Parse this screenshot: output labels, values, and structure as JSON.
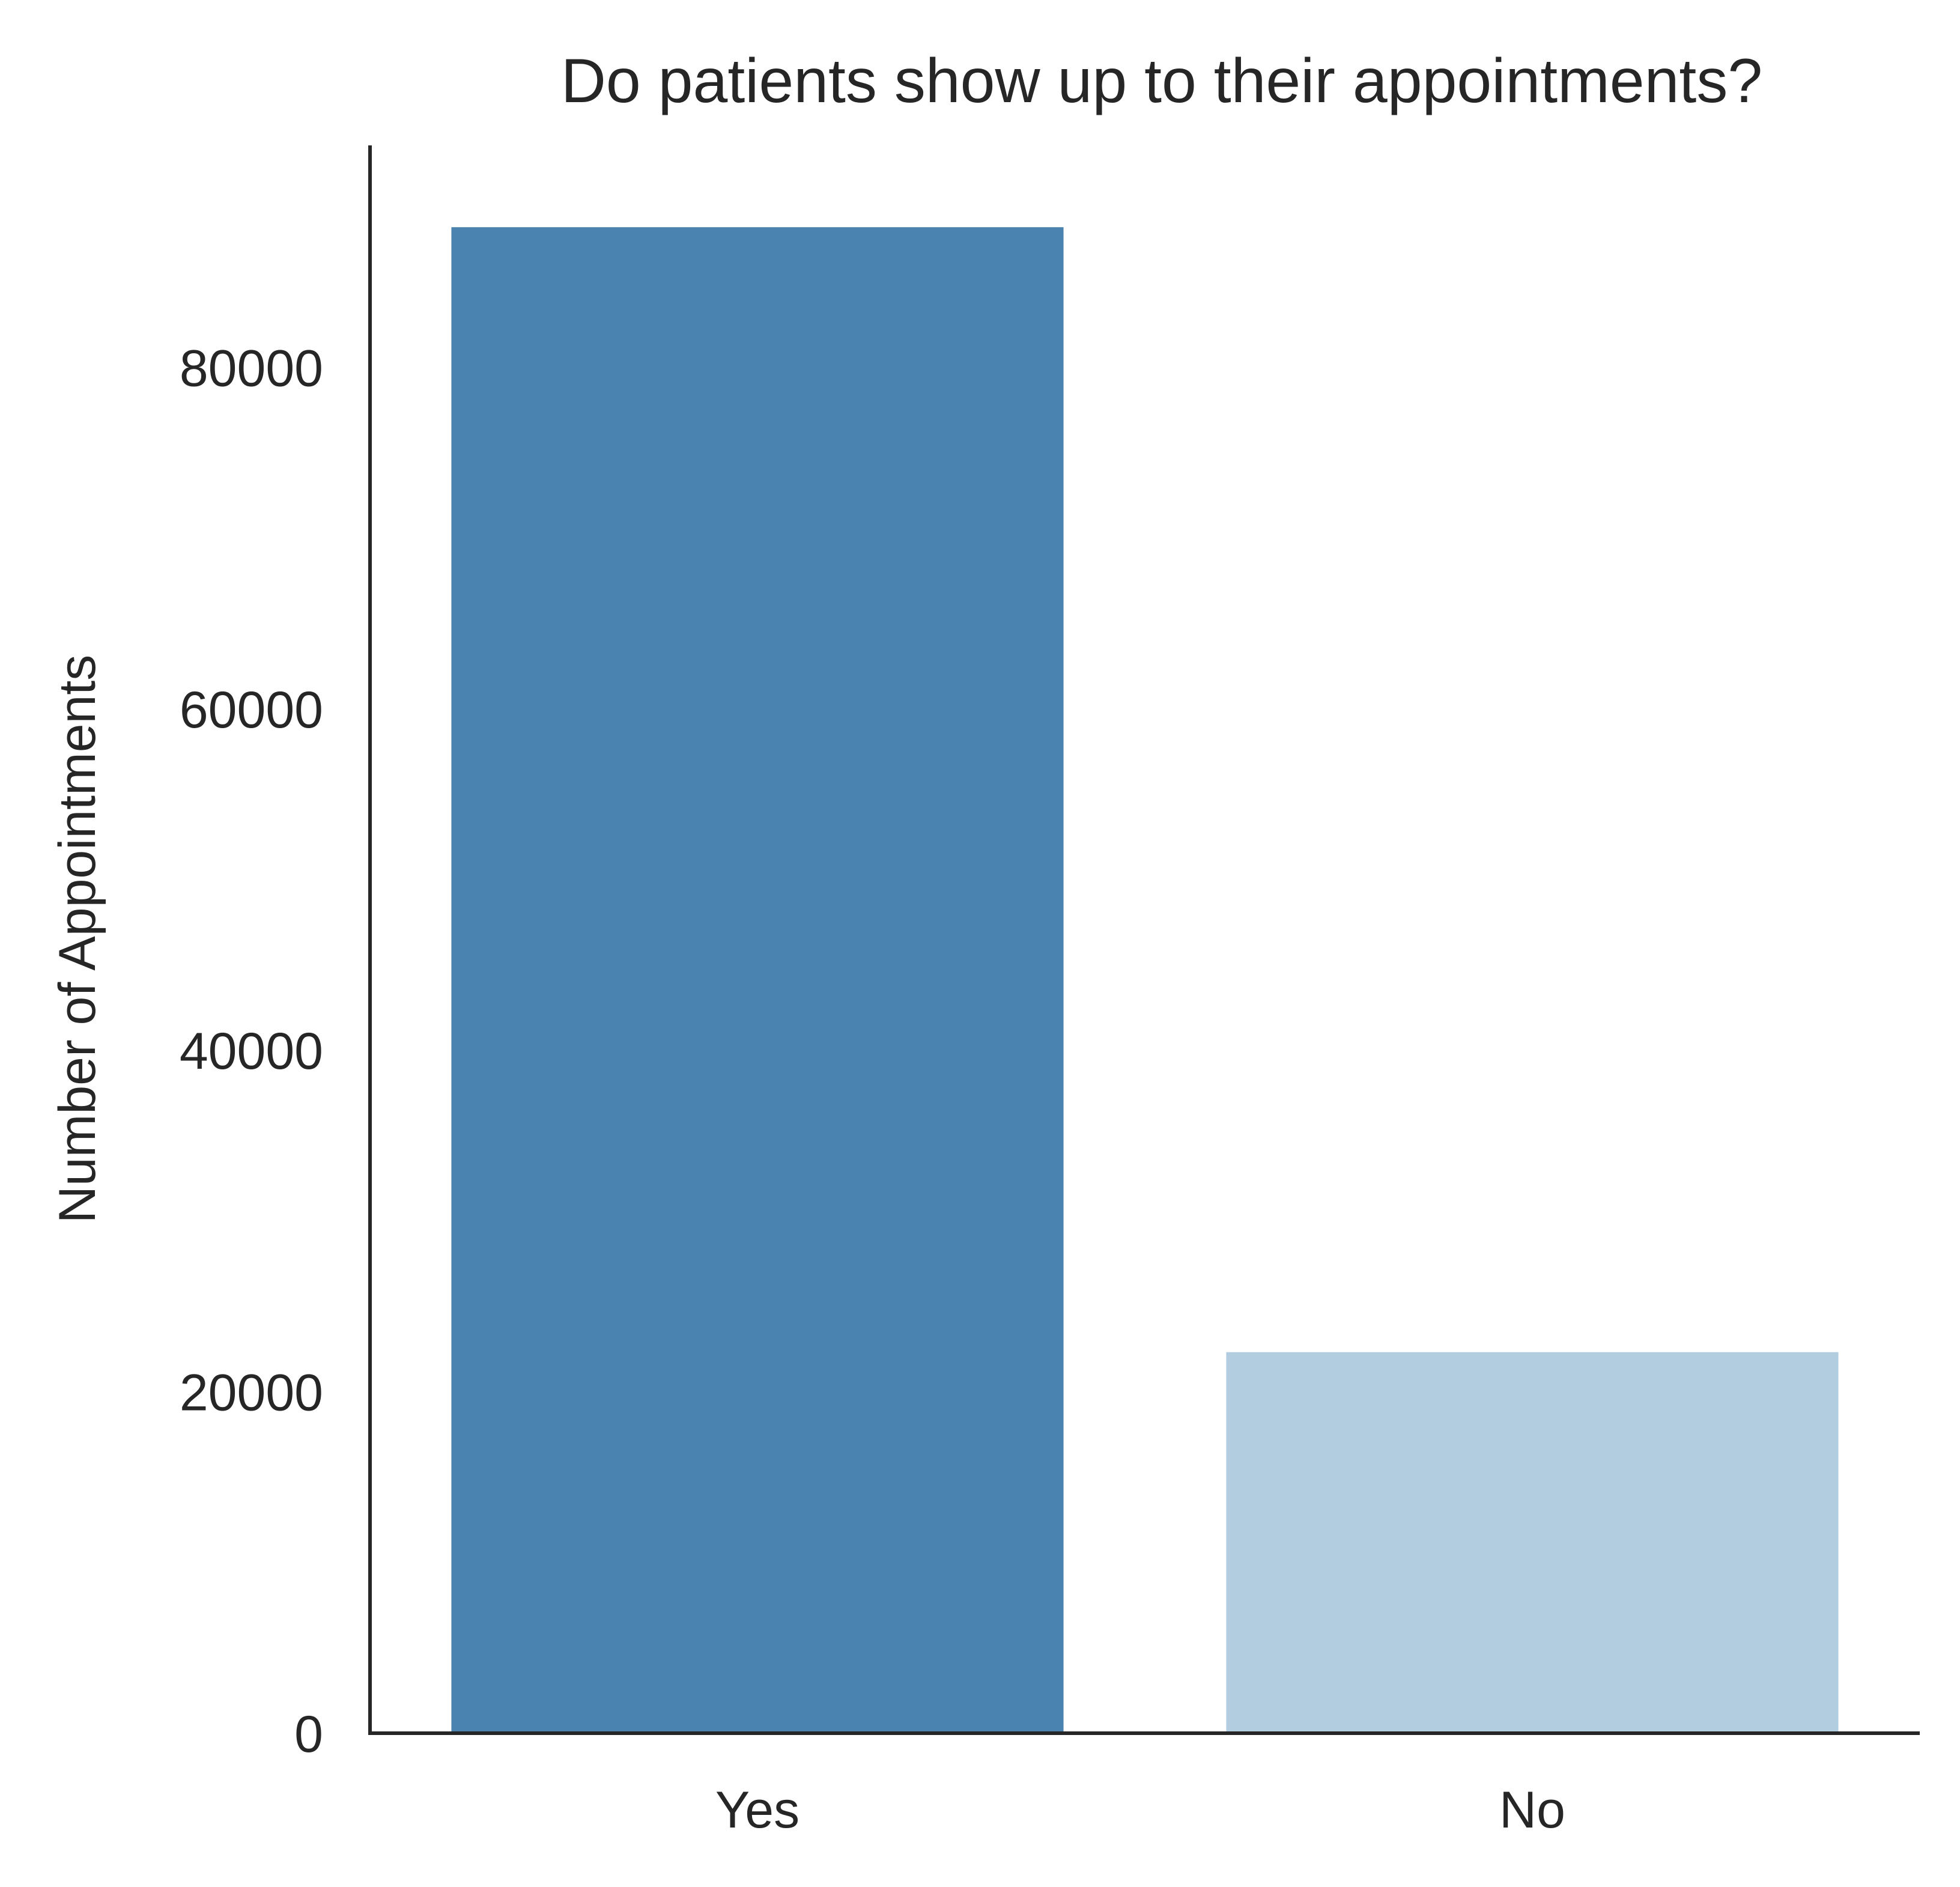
{
  "chart_data": {
    "type": "bar",
    "title": "Do patients show up to their appointments?",
    "xlabel": "",
    "ylabel": "Number of Appointments",
    "categories": [
      "Yes",
      "No"
    ],
    "values": [
      88208,
      22319
    ],
    "bar_colors": [
      "#4a83b0",
      "#b2cde0"
    ],
    "ylim": [
      0,
      93000
    ],
    "yticks": [
      0,
      20000,
      40000,
      60000,
      80000
    ],
    "ytick_labels": [
      "0",
      "20000",
      "40000",
      "60000",
      "80000"
    ],
    "grid": false,
    "legend": "none",
    "axis_color": "#262626",
    "text_color": "#262626"
  }
}
